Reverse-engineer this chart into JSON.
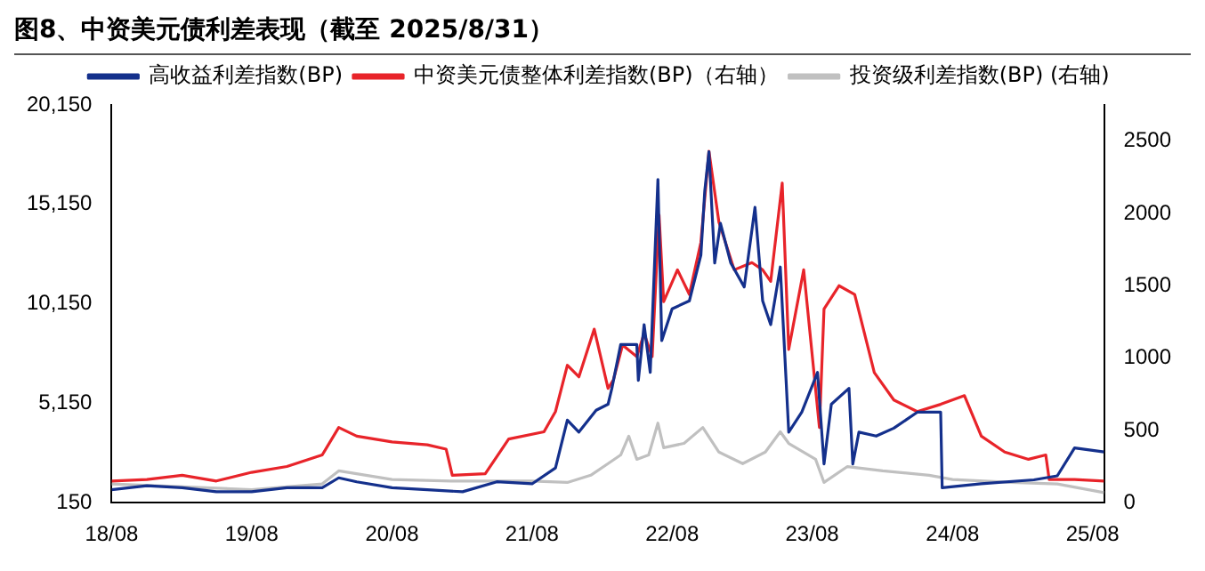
{
  "chart_data": {
    "type": "line",
    "title": "图8、中资美元债利差表现（截至 2025/8/31）",
    "legend": "top",
    "grid": false,
    "marker": "none",
    "line_style": "solid",
    "xlim": [
      "2018-08-01",
      "2025-08-31"
    ],
    "xticks": [
      {
        "value": "2018-08-01",
        "label": "18/08"
      },
      {
        "value": "2019-08-01",
        "label": "19/08"
      },
      {
        "value": "2020-08-01",
        "label": "20/08"
      },
      {
        "value": "2021-08-01",
        "label": "21/08"
      },
      {
        "value": "2022-08-01",
        "label": "22/08"
      },
      {
        "value": "2023-08-01",
        "label": "23/08"
      },
      {
        "value": "2024-08-01",
        "label": "24/08"
      },
      {
        "value": "2025-08-01",
        "label": "25/08"
      }
    ],
    "ylim": [
      150,
      20150
    ],
    "yticks": [
      150,
      {
        "value": 5150,
        "label": "5,150"
      },
      {
        "value": 10150,
        "label": "10,150"
      },
      {
        "value": 15150,
        "label": "15,150"
      },
      {
        "value": 20150,
        "label": "20,150"
      }
    ],
    "y2lim": [
      0,
      2750
    ],
    "y2ticks": [
      0,
      500,
      1000,
      1500,
      2000,
      2500
    ],
    "series": [
      {
        "name": "高收益利差指数(BP)",
        "color": "#14308c",
        "x": [
          "2018-08-01",
          "2018-11-01",
          "2019-02-01",
          "2019-05-01",
          "2019-08-01",
          "2019-11-01",
          "2020-02-01",
          "2020-03-15",
          "2020-05-01",
          "2020-08-01",
          "2020-11-01",
          "2021-02-01",
          "2021-05-01",
          "2021-08-01",
          "2021-10-01",
          "2021-11-01",
          "2021-12-01",
          "2022-01-15",
          "2022-02-15",
          "2022-02-25",
          "2022-03-20",
          "2022-05-01",
          "2022-05-05",
          "2022-05-20",
          "2022-06-05",
          "2022-06-25",
          "2022-07-05",
          "2022-08-01",
          "2022-09-15",
          "2022-10-15",
          "2022-10-25",
          "2022-11-05",
          "2022-11-20",
          "2022-12-05",
          "2023-01-01",
          "2023-02-05",
          "2023-03-05",
          "2023-03-25",
          "2023-04-15",
          "2023-05-10",
          "2023-06-01",
          "2023-07-05",
          "2023-08-15",
          "2023-09-01",
          "2023-09-20",
          "2023-11-05",
          "2023-11-15",
          "2023-12-01",
          "2024-01-15",
          "2024-03-01",
          "2024-05-01",
          "2024-07-01",
          "2024-07-05",
          "2024-10-15",
          "2025-03-01",
          "2025-05-01",
          "2025-06-15",
          "2025-08-31"
        ],
        "values": [
          800,
          1000,
          900,
          700,
          700,
          900,
          900,
          1400,
          1200,
          900,
          800,
          700,
          1200,
          1100,
          1900,
          4300,
          3700,
          4800,
          5100,
          5900,
          8100,
          8100,
          6300,
          9100,
          6700,
          16400,
          8300,
          9900,
          10300,
          12600,
          15800,
          17800,
          12200,
          14200,
          12200,
          11000,
          15000,
          10300,
          9100,
          12000,
          3700,
          4700,
          6700,
          2100,
          5100,
          5900,
          2100,
          3700,
          3500,
          3900,
          4700,
          4700,
          900,
          1100,
          1300,
          1500,
          2900,
          2700
        ]
      },
      {
        "name": "中资美元债整体利差指数(BP)（右轴）",
        "color": "#e8242a",
        "axis": "y2",
        "x": [
          "2018-08-01",
          "2018-11-01",
          "2019-02-01",
          "2019-05-01",
          "2019-08-01",
          "2019-11-01",
          "2020-02-01",
          "2020-03-15",
          "2020-05-01",
          "2020-08-01",
          "2020-11-01",
          "2020-12-20",
          "2021-01-05",
          "2021-04-01",
          "2021-06-01",
          "2021-09-01",
          "2021-10-01",
          "2021-11-01",
          "2021-12-01",
          "2022-01-10",
          "2022-02-15",
          "2022-03-01",
          "2022-03-25",
          "2022-05-01",
          "2022-05-20",
          "2022-06-10",
          "2022-06-28",
          "2022-07-10",
          "2022-08-15",
          "2022-09-15",
          "2022-10-15",
          "2022-11-05",
          "2022-12-01",
          "2023-01-10",
          "2023-02-25",
          "2023-03-25",
          "2023-04-15",
          "2023-05-15",
          "2023-06-01",
          "2023-07-10",
          "2023-08-20",
          "2023-09-01",
          "2023-10-10",
          "2023-11-20",
          "2024-01-10",
          "2024-03-01",
          "2024-05-01",
          "2024-07-01",
          "2024-09-01",
          "2024-10-15",
          "2024-12-15",
          "2025-02-15",
          "2025-04-01",
          "2025-04-10",
          "2025-06-15",
          "2025-08-31"
        ],
        "values": [
          150,
          160,
          190,
          150,
          210,
          250,
          330,
          520,
          460,
          420,
          400,
          370,
          190,
          200,
          440,
          490,
          630,
          950,
          870,
          1200,
          790,
          850,
          1090,
          1010,
          1170,
          1010,
          1990,
          1390,
          1610,
          1440,
          1800,
          2430,
          1940,
          1610,
          1660,
          1610,
          1530,
          2210,
          1060,
          1610,
          520,
          1340,
          1500,
          1440,
          900,
          710,
          630,
          680,
          740,
          460,
          350,
          300,
          330,
          160,
          160,
          150
        ]
      },
      {
        "name": "投资级利差指数(BP) (右轴)",
        "color": "#c0c0c0",
        "axis": "y2",
        "x": [
          "2018-08-01",
          "2019-08-01",
          "2020-02-01",
          "2020-03-15",
          "2020-08-01",
          "2021-01-01",
          "2021-08-01",
          "2021-11-01",
          "2022-01-01",
          "2022-02-15",
          "2022-03-20",
          "2022-04-10",
          "2022-05-01",
          "2022-06-01",
          "2022-06-25",
          "2022-07-10",
          "2022-09-01",
          "2022-10-20",
          "2022-12-01",
          "2023-02-01",
          "2023-04-01",
          "2023-05-10",
          "2023-06-01",
          "2023-08-10",
          "2023-09-01",
          "2023-11-01",
          "2024-02-01",
          "2024-06-01",
          "2024-08-01",
          "2025-01-01",
          "2025-05-01",
          "2025-08-31"
        ],
        "values": [
          130,
          90,
          130,
          220,
          160,
          150,
          150,
          140,
          190,
          270,
          330,
          460,
          300,
          330,
          550,
          380,
          410,
          520,
          350,
          270,
          350,
          490,
          410,
          300,
          140,
          250,
          220,
          190,
          160,
          140,
          130,
          70
        ]
      }
    ]
  }
}
